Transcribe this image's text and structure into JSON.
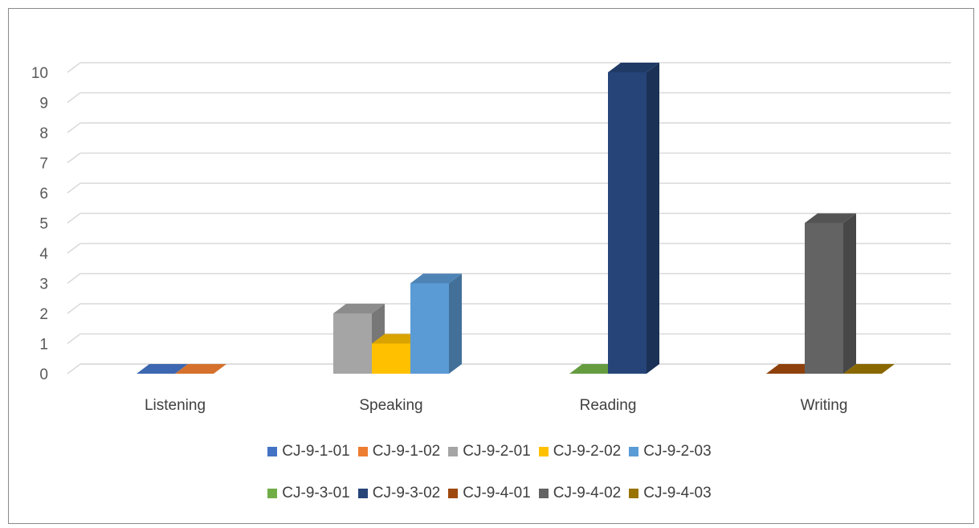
{
  "chart_data": {
    "type": "bar",
    "style": "3d-clustered-column",
    "categories": [
      "Listening",
      "Speaking",
      "Reading",
      "Writing"
    ],
    "y_ticks": [
      "0",
      "1",
      "2",
      "3",
      "4",
      "5",
      "6",
      "7",
      "8",
      "9",
      "10"
    ],
    "ylim": [
      0,
      10
    ],
    "grid": true,
    "legend_position": "bottom",
    "series": [
      {
        "name": "CJ-9-1-01",
        "color": "#4472C4",
        "values": [
          0,
          null,
          null,
          null
        ]
      },
      {
        "name": "CJ-9-1-02",
        "color": "#ED7D31",
        "values": [
          0,
          null,
          null,
          null
        ]
      },
      {
        "name": "CJ-9-2-01",
        "color": "#A5A5A5",
        "values": [
          null,
          2,
          null,
          null
        ]
      },
      {
        "name": "CJ-9-2-02",
        "color": "#FFC000",
        "values": [
          null,
          1,
          null,
          null
        ]
      },
      {
        "name": "CJ-9-2-03",
        "color": "#5B9BD5",
        "values": [
          null,
          3,
          null,
          null
        ]
      },
      {
        "name": "CJ-9-3-01",
        "color": "#70AD47",
        "values": [
          null,
          null,
          0,
          null
        ]
      },
      {
        "name": "CJ-9-3-02",
        "color": "#264478",
        "values": [
          null,
          null,
          10,
          null
        ]
      },
      {
        "name": "CJ-9-4-01",
        "color": "#9E480E",
        "values": [
          null,
          null,
          null,
          0
        ]
      },
      {
        "name": "CJ-9-4-02",
        "color": "#636363",
        "values": [
          null,
          null,
          null,
          5
        ]
      },
      {
        "name": "CJ-9-4-03",
        "color": "#997300",
        "values": [
          null,
          null,
          null,
          0
        ]
      }
    ]
  }
}
